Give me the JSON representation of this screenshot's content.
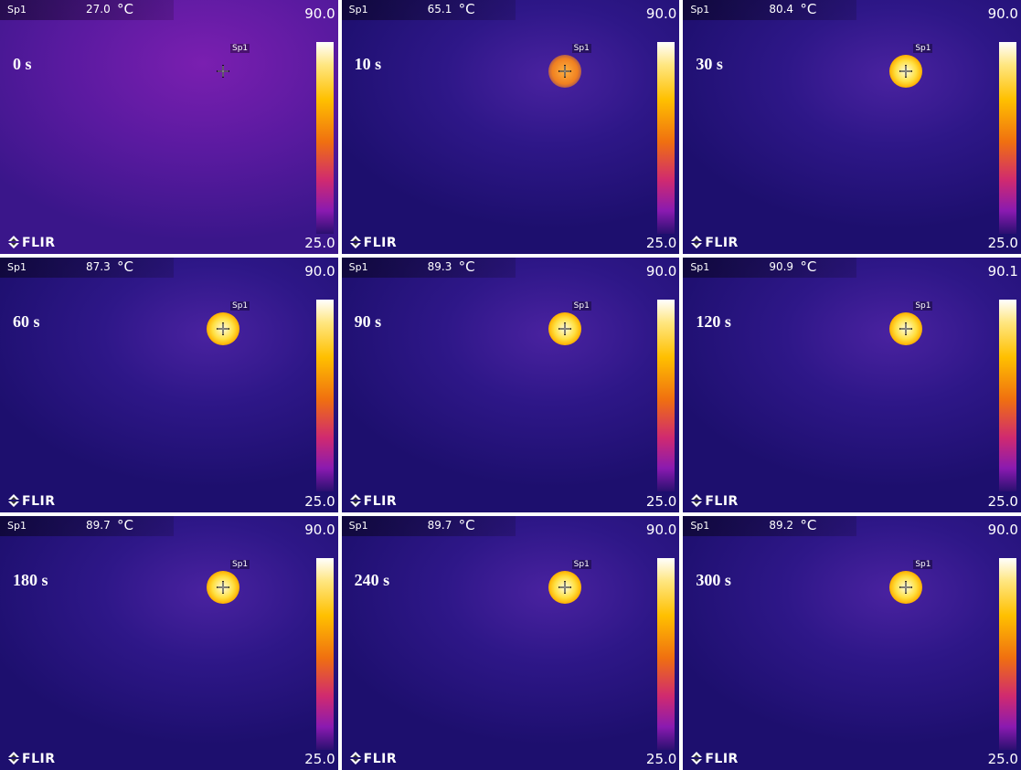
{
  "panels": [
    {
      "spot_label": "Sp1",
      "temperature": "27.0",
      "unit": "°C",
      "scale_max": "90.0",
      "scale_min": "25.0",
      "time": "0 s",
      "marker_label": "Sp1",
      "logo": "FLIR"
    },
    {
      "spot_label": "Sp1",
      "temperature": "65.1",
      "unit": "°C",
      "scale_max": "90.0",
      "scale_min": "25.0",
      "time": "10 s",
      "marker_label": "Sp1",
      "logo": "FLIR"
    },
    {
      "spot_label": "Sp1",
      "temperature": "80.4",
      "unit": "°C",
      "scale_max": "90.0",
      "scale_min": "25.0",
      "time": "30 s",
      "marker_label": "Sp1",
      "logo": "FLIR"
    },
    {
      "spot_label": "Sp1",
      "temperature": "87.3",
      "unit": "°C",
      "scale_max": "90.0",
      "scale_min": "25.0",
      "time": "60 s",
      "marker_label": "Sp1",
      "logo": "FLIR"
    },
    {
      "spot_label": "Sp1",
      "temperature": "89.3",
      "unit": "°C",
      "scale_max": "90.0",
      "scale_min": "25.0",
      "time": "90 s",
      "marker_label": "Sp1",
      "logo": "FLIR"
    },
    {
      "spot_label": "Sp1",
      "temperature": "90.9",
      "unit": "°C",
      "scale_max": "90.1",
      "scale_min": "25.0",
      "time": "120 s",
      "marker_label": "Sp1",
      "logo": "FLIR"
    },
    {
      "spot_label": "Sp1",
      "temperature": "89.7",
      "unit": "°C",
      "scale_max": "90.0",
      "scale_min": "25.0",
      "time": "180 s",
      "marker_label": "Sp1",
      "logo": "FLIR"
    },
    {
      "spot_label": "Sp1",
      "temperature": "89.7",
      "unit": "°C",
      "scale_max": "90.0",
      "scale_min": "25.0",
      "time": "240 s",
      "marker_label": "Sp1",
      "logo": "FLIR"
    },
    {
      "spot_label": "Sp1",
      "temperature": "89.2",
      "unit": "°C",
      "scale_max": "90.0",
      "scale_min": "25.0",
      "time": "300 s",
      "marker_label": "Sp1",
      "logo": "FLIR"
    }
  ]
}
